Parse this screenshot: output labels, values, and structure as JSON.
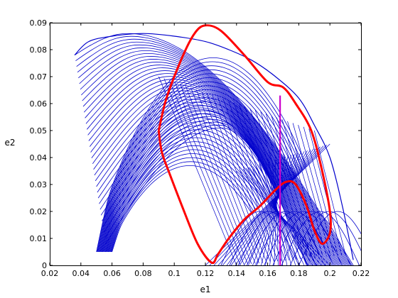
{
  "chart_data": {
    "type": "line",
    "title": "",
    "xlabel": "e1",
    "ylabel": "e2",
    "xlim": [
      0.02,
      0.22
    ],
    "ylim": [
      0,
      0.09
    ],
    "xticks": [
      "0.02",
      "0.04",
      "0.06",
      "0.08",
      "0.1",
      "0.12",
      "0.14",
      "0.16",
      "0.18",
      "0.2",
      "0.22"
    ],
    "yticks": [
      "0",
      "0.01",
      "0.02",
      "0.03",
      "0.04",
      "0.05",
      "0.06",
      "0.07",
      "0.08",
      "0.09"
    ],
    "grid": false,
    "colors": {
      "family": "#0000cc",
      "highlight": "#ff0000",
      "vertical": "#cc00cc"
    },
    "series": [
      {
        "style": "curve-family",
        "color": "#0000cc",
        "x": [
          0.036,
          0.045,
          0.06,
          0.08,
          0.1,
          0.12,
          0.135,
          0.15,
          0.165,
          0.18,
          0.19,
          0.2,
          0.208,
          0.215
        ],
        "y": [
          0.078,
          0.083,
          0.085,
          0.086,
          0.085,
          0.083,
          0.08,
          0.076,
          0.07,
          0.062,
          0.052,
          0.04,
          0.022,
          0.002
        ]
      },
      {
        "style": "thick",
        "color": "#ff0000",
        "x": [
          0.09,
          0.095,
          0.105,
          0.113,
          0.12,
          0.13,
          0.145,
          0.16,
          0.17,
          0.178,
          0.188,
          0.195,
          0.2,
          0.2,
          0.195,
          0.19,
          0.185,
          0.178,
          0.172,
          0.165,
          0.155,
          0.145,
          0.135,
          0.128,
          0.124,
          0.115,
          0.105,
          0.097,
          0.092,
          0.09
        ],
        "y": [
          0.05,
          0.062,
          0.077,
          0.086,
          0.089,
          0.087,
          0.078,
          0.068,
          0.066,
          0.06,
          0.05,
          0.035,
          0.02,
          0.012,
          0.008,
          0.013,
          0.022,
          0.03,
          0.031,
          0.028,
          0.022,
          0.017,
          0.01,
          0.004,
          0.001,
          0.008,
          0.022,
          0.034,
          0.042,
          0.05
        ]
      },
      {
        "style": "vertical",
        "color": "#cc00cc",
        "x": [
          0.168,
          0.168
        ],
        "y": [
          0,
          0.063
        ]
      }
    ]
  }
}
